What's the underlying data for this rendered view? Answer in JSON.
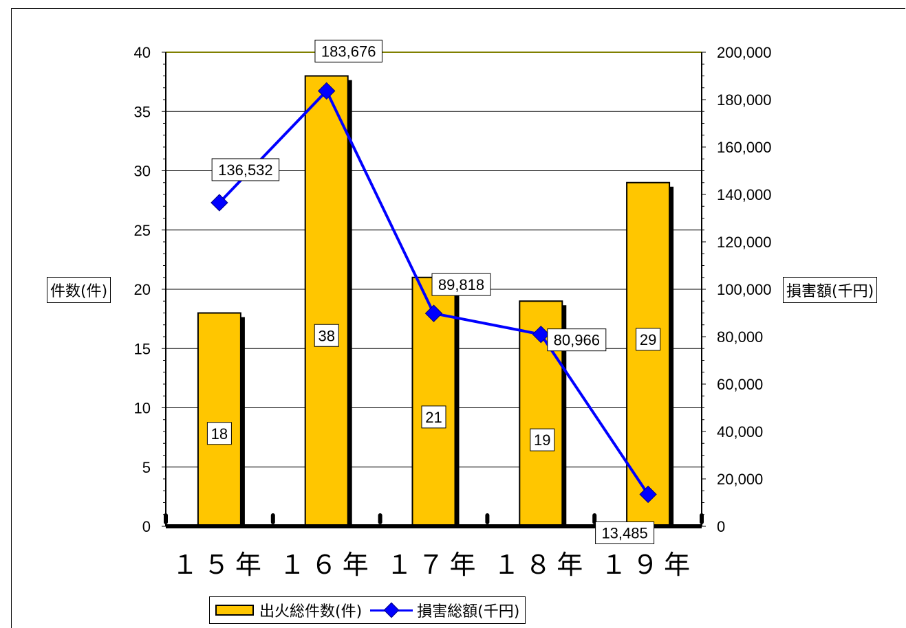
{
  "chart_data": {
    "type": "bar+line",
    "categories": [
      "１５年",
      "１６年",
      "１７年",
      "１８年",
      "１９年"
    ],
    "series": [
      {
        "name": "出火総件数(件)",
        "type": "bar",
        "axis": "left",
        "values": [
          18,
          38,
          21,
          19,
          29
        ],
        "labels": [
          "18",
          "38",
          "21",
          "19",
          "29"
        ]
      },
      {
        "name": "損害総額(千円)",
        "type": "line",
        "axis": "right",
        "values": [
          136532,
          183676,
          89818,
          80966,
          13485
        ],
        "labels": [
          "136,532",
          "183,676",
          "89,818",
          "80,966",
          "13,485"
        ]
      }
    ],
    "y_left": {
      "title": "件数(件)",
      "min": 0,
      "max": 40,
      "ticks": [
        "0",
        "5",
        "10",
        "15",
        "20",
        "25",
        "30",
        "35",
        "40"
      ]
    },
    "y_right": {
      "title": "損害額(千円)",
      "min": 0,
      "max": 200000,
      "ticks": [
        "0",
        "20,000",
        "40,000",
        "60,000",
        "80,000",
        "100,000",
        "120,000",
        "140,000",
        "160,000",
        "180,000",
        "200,000"
      ]
    },
    "grid": true,
    "legend": "bottom-center",
    "colors": {
      "bar": "#FFC600",
      "line": "#0000FF",
      "plot_border": "#808000",
      "grid": "#000000"
    }
  }
}
